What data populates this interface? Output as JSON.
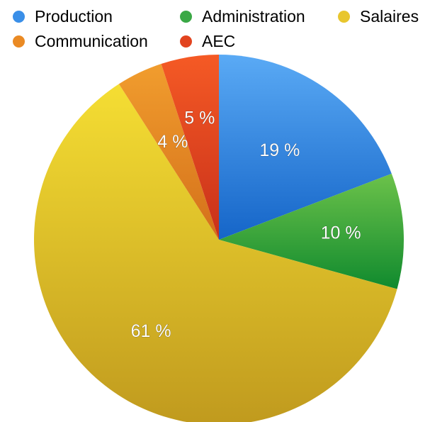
{
  "chart_data": {
    "type": "pie",
    "title": "",
    "legend_placement": "top",
    "series": [
      {
        "categories": [
          "Production",
          "Administration",
          "Salaires",
          "Communication",
          "AEC"
        ],
        "values": [
          19,
          10,
          61,
          4,
          5
        ],
        "labels": [
          "19 %",
          "10 %",
          "61 %",
          "4 %",
          "5 %"
        ],
        "colors": [
          "#2a7fe0",
          "#2fa33a",
          "#e5c22a",
          "#e8861f",
          "#e0401c"
        ]
      }
    ]
  }
}
